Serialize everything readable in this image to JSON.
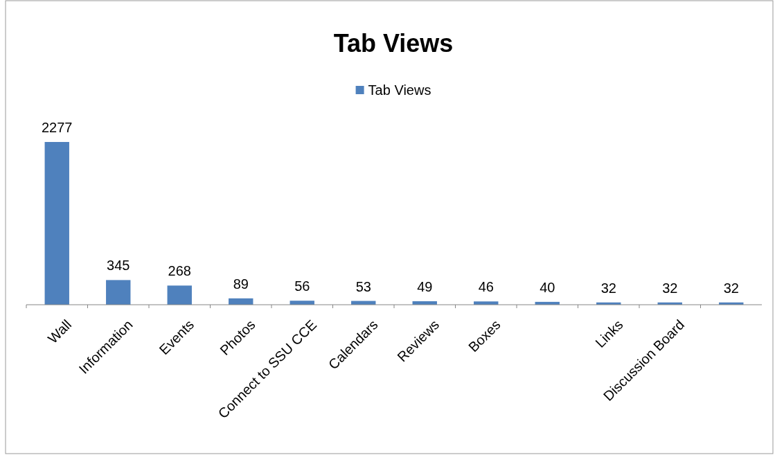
{
  "chart_data": {
    "type": "bar",
    "title": "Tab Views",
    "categories": [
      "Wall",
      "Information",
      "Events",
      "Photos",
      "Connect to SSU CCE",
      "Calendars",
      "Reviews",
      "Boxes",
      null,
      "Links",
      "Discussion Board",
      null
    ],
    "series": [
      {
        "name": "Tab Views",
        "color": "#4f81bd",
        "values": [
          2277,
          345,
          268,
          89,
          56,
          53,
          49,
          46,
          40,
          32,
          32,
          32
        ]
      }
    ],
    "data_labels": true,
    "legend": "top"
  }
}
